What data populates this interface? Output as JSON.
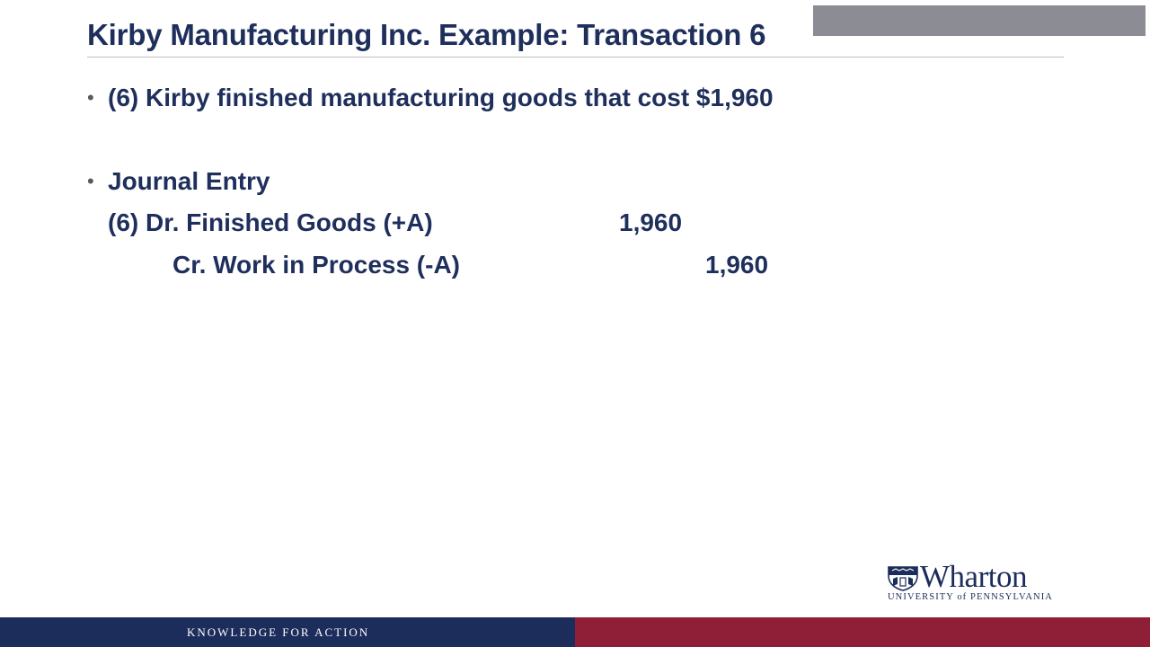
{
  "slide": {
    "title": "Kirby Manufacturing Inc. Example: Transaction 6",
    "bullets": [
      {
        "marker": "•",
        "text": "(6) Kirby finished manufacturing goods that cost $1,960"
      },
      {
        "marker": "•",
        "text": "Journal Entry"
      }
    ],
    "journal_entry": {
      "debit": {
        "label": "(6) Dr. Finished Goods (+A)",
        "amount": "1,960"
      },
      "credit": {
        "label": "Cr. Work in Process (-A)",
        "amount": "1,960"
      }
    }
  },
  "branding": {
    "logo_word": "Wharton",
    "logo_subtitle": "UNIVERSITY of PENNSYLVANIA",
    "footer_tagline": "KNOWLEDGE FOR ACTION",
    "colors": {
      "navy": "#1d2d5b",
      "crimson": "#8f1f36",
      "title_blue": "#1f2f5c",
      "corner_gray": "#8c8c95"
    }
  }
}
